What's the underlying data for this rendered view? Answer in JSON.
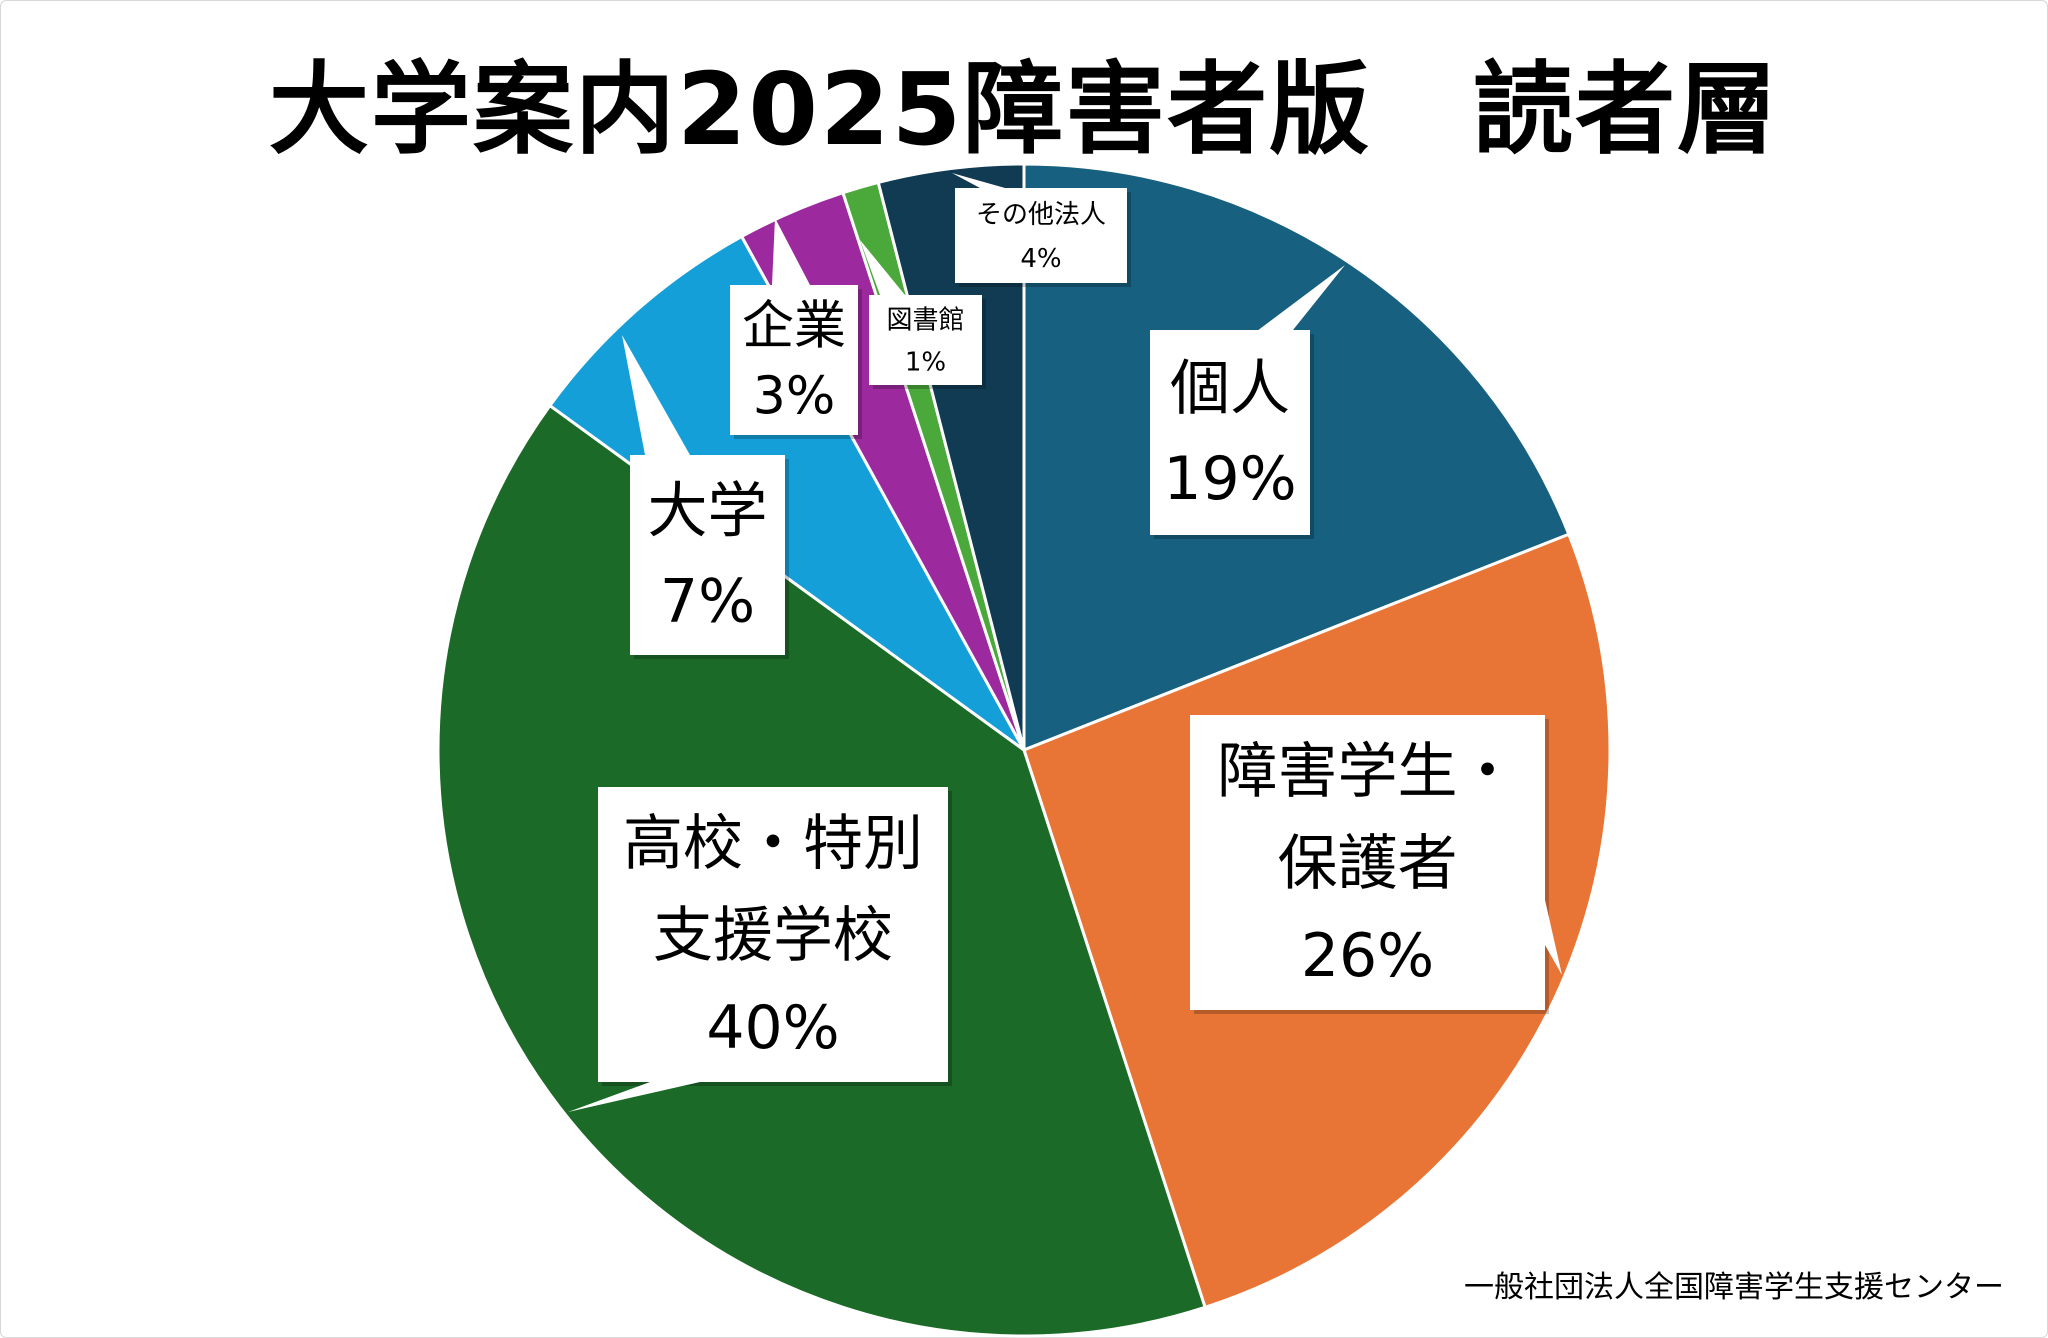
{
  "chart_data": {
    "type": "pie",
    "title": "大学案内2025障害者版　読者層",
    "slices": [
      {
        "label": "個人",
        "lines": [
          "個人"
        ],
        "pct_label": "19%",
        "value": 19,
        "color": "#17607f"
      },
      {
        "label": "障害学生・保護者",
        "lines": [
          "障害学生・",
          "保護者"
        ],
        "pct_label": "26%",
        "value": 26,
        "color": "#e87535"
      },
      {
        "label": "高校・特別支援学校",
        "lines": [
          "高校・特別",
          "支援学校"
        ],
        "pct_label": "40%",
        "value": 40,
        "color": "#1c6a28"
      },
      {
        "label": "大学",
        "lines": [
          "大学"
        ],
        "pct_label": "7%",
        "value": 7,
        "color": "#159fd9"
      },
      {
        "label": "企業",
        "lines": [
          "企業"
        ],
        "pct_label": "3%",
        "value": 3,
        "color": "#9c2a9e"
      },
      {
        "label": "図書館",
        "lines": [
          "図書館"
        ],
        "pct_label": "1%",
        "value": 1,
        "color": "#4ba83b"
      },
      {
        "label": "その他法人",
        "lines": [
          "その他法人"
        ],
        "pct_label": "4%",
        "value": 4,
        "color": "#113a53"
      }
    ]
  },
  "footer": "一般社団法人全国障害学生支援センター"
}
